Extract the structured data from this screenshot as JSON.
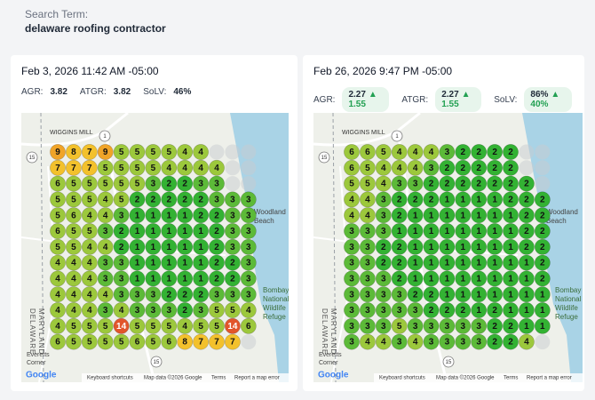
{
  "header": {
    "label": "Search Term:",
    "term": "delaware roofing contractor"
  },
  "scans": [
    {
      "date": "Feb 3, 2026 11:42 AM -05:00",
      "metrics": [
        {
          "label": "AGR:",
          "value": "3.82"
        },
        {
          "label": "ATGR:",
          "value": "3.82"
        },
        {
          "label": "SoLV:",
          "value": "46%"
        }
      ],
      "grid": [
        [
          9,
          8,
          7,
          9,
          5,
          5,
          5,
          5,
          4,
          4,
          null,
          null,
          null
        ],
        [
          7,
          7,
          7,
          5,
          5,
          5,
          5,
          4,
          4,
          4,
          4,
          null,
          null
        ],
        [
          6,
          5,
          5,
          5,
          5,
          5,
          3,
          2,
          2,
          3,
          3,
          null,
          null
        ],
        [
          5,
          5,
          5,
          4,
          5,
          2,
          2,
          2,
          2,
          2,
          3,
          3,
          3
        ],
        [
          5,
          6,
          4,
          4,
          3,
          1,
          1,
          1,
          1,
          2,
          2,
          3,
          3
        ],
        [
          6,
          5,
          5,
          3,
          2,
          1,
          1,
          1,
          1,
          1,
          2,
          3,
          3
        ],
        [
          5,
          5,
          4,
          4,
          2,
          1,
          1,
          1,
          1,
          1,
          2,
          3,
          3
        ],
        [
          4,
          4,
          4,
          3,
          3,
          1,
          1,
          1,
          1,
          1,
          2,
          2,
          3
        ],
        [
          4,
          4,
          4,
          3,
          3,
          1,
          1,
          1,
          1,
          1,
          2,
          2,
          3
        ],
        [
          4,
          4,
          4,
          4,
          3,
          3,
          3,
          2,
          2,
          2,
          3,
          3,
          3
        ],
        [
          4,
          4,
          4,
          3,
          4,
          3,
          3,
          3,
          2,
          3,
          5,
          5,
          4
        ],
        [
          4,
          5,
          5,
          5,
          14,
          5,
          5,
          5,
          4,
          5,
          5,
          14,
          6
        ],
        [
          6,
          5,
          5,
          5,
          5,
          6,
          5,
          6,
          8,
          7,
          7,
          7,
          null
        ]
      ]
    },
    {
      "date": "Feb 26, 2026 9:47 PM -05:00",
      "metrics": [
        {
          "label": "AGR:",
          "value": "2.27",
          "change": "▲ 1.55"
        },
        {
          "label": "ATGR:",
          "value": "2.27",
          "change": "▲ 1.55"
        },
        {
          "label": "SoLV:",
          "value": "86%",
          "change": "▲ 40%"
        }
      ],
      "grid": [
        [
          6,
          6,
          5,
          4,
          4,
          4,
          3,
          2,
          2,
          2,
          2,
          null,
          null
        ],
        [
          6,
          5,
          4,
          4,
          4,
          3,
          2,
          2,
          2,
          2,
          2,
          null,
          null
        ],
        [
          5,
          5,
          4,
          3,
          3,
          2,
          2,
          2,
          2,
          2,
          2,
          2,
          null
        ],
        [
          4,
          4,
          3,
          2,
          2,
          2,
          1,
          1,
          1,
          1,
          2,
          2,
          2
        ],
        [
          4,
          4,
          3,
          2,
          1,
          1,
          1,
          1,
          1,
          1,
          1,
          2,
          2
        ],
        [
          3,
          3,
          3,
          1,
          1,
          1,
          1,
          1,
          1,
          1,
          1,
          2,
          2
        ],
        [
          3,
          3,
          2,
          2,
          1,
          1,
          1,
          1,
          1,
          1,
          1,
          2,
          2
        ],
        [
          3,
          3,
          2,
          2,
          1,
          1,
          1,
          1,
          1,
          1,
          1,
          1,
          2
        ],
        [
          3,
          3,
          3,
          2,
          1,
          1,
          1,
          1,
          1,
          1,
          1,
          1,
          2
        ],
        [
          3,
          3,
          3,
          3,
          2,
          2,
          1,
          1,
          1,
          1,
          1,
          1,
          1
        ],
        [
          3,
          3,
          3,
          3,
          3,
          2,
          2,
          2,
          1,
          2,
          1,
          1,
          1
        ],
        [
          3,
          3,
          3,
          5,
          3,
          3,
          3,
          3,
          3,
          2,
          2,
          1,
          1
        ],
        [
          3,
          4,
          4,
          3,
          4,
          3,
          3,
          3,
          3,
          2,
          2,
          4,
          null
        ]
      ]
    }
  ],
  "map": {
    "place": "WIGGINS MILL",
    "beach": [
      "Woodland",
      "Beach"
    ],
    "refuge": [
      "Bombay Hook",
      "National",
      "Wildlife",
      "Refuge"
    ],
    "states": [
      "DELAWARE",
      "MARYLAND"
    ],
    "town": [
      "Everetts",
      "Corner"
    ],
    "shields": [
      "15",
      "1",
      "15"
    ],
    "logo": "Google",
    "footer": [
      "Keyboard shortcuts",
      "Map data ©2026 Google",
      "Terms",
      "Report a map error"
    ]
  }
}
